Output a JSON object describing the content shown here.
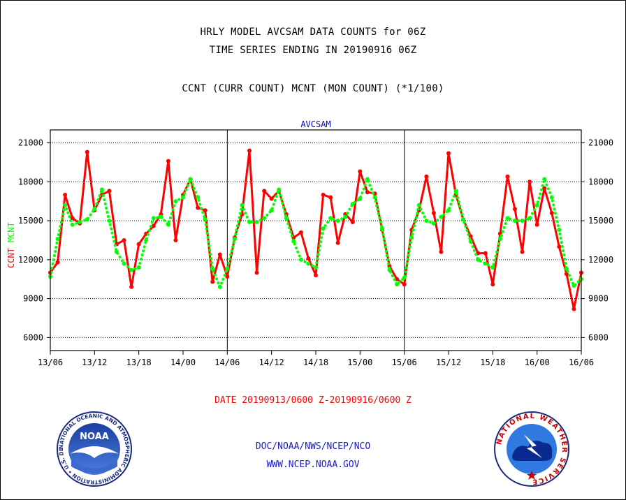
{
  "header": {
    "title_line1": "HRLY MODEL AVCSAM DATA COUNTS for 06Z",
    "title_line2": "TIME SERIES ENDING IN 20190916 06Z",
    "title_line3": "CCNT (CURR COUNT) MCNT (MON COUNT) (*1/100)"
  },
  "chart_data": {
    "type": "line",
    "title": "AVCSAM",
    "ylabel_ccnt": "CCNT",
    "ylabel_mcnt": "MCNT",
    "xlabel": "DATE 20190913/0600 Z-20190916/0600 Z",
    "ylim": [
      5000,
      22000
    ],
    "y_ticks": [
      6000,
      9000,
      12000,
      15000,
      18000,
      21000
    ],
    "y_tick_labels": [
      "6000",
      "9000",
      "12000",
      "15000",
      "18000",
      "21000"
    ],
    "x_tick_labels": [
      "13/06",
      "13/12",
      "13/18",
      "14/00",
      "14/06",
      "14/12",
      "14/18",
      "15/00",
      "15/06",
      "15/12",
      "15/18",
      "16/00",
      "16/06"
    ],
    "x_hours": [
      0,
      6,
      12,
      18,
      24,
      30,
      36,
      42,
      48,
      54,
      60,
      66,
      72
    ],
    "grid": true,
    "series": [
      {
        "name": "CCNT",
        "color": "#ff0000",
        "x": [
          0,
          1,
          2,
          3,
          4,
          5,
          6,
          7,
          8,
          9,
          10,
          11,
          12,
          13,
          14,
          15,
          16,
          17,
          18,
          19,
          20,
          21,
          22,
          23,
          24,
          25,
          26,
          27,
          28,
          29,
          30,
          31,
          32,
          33,
          34,
          35,
          36,
          37,
          38,
          39,
          40,
          41,
          42,
          43,
          44,
          45,
          46,
          47,
          48,
          49,
          50,
          51,
          52,
          53,
          54,
          55,
          56,
          57,
          58,
          59,
          60,
          61,
          62,
          63,
          64,
          65,
          66,
          67,
          68,
          69,
          70,
          71,
          72
        ],
        "values": [
          11000,
          11800,
          17000,
          15200,
          14800,
          20300,
          15800,
          17000,
          17300,
          13200,
          13500,
          9900,
          13200,
          14000,
          14600,
          15500,
          19600,
          13500,
          17000,
          18200,
          16000,
          15800,
          10300,
          12400,
          10700,
          13700,
          15500,
          20400,
          11000,
          17300,
          16700,
          17300,
          15500,
          13700,
          14100,
          12100,
          10800,
          17000,
          16800,
          13300,
          15500,
          14900,
          18800,
          17200,
          17100,
          14300,
          11500,
          10500,
          10100,
          14300,
          15800,
          18400,
          15600,
          12600,
          20200,
          17000,
          15100,
          13800,
          12500,
          12500,
          10100,
          14000,
          18400,
          15900,
          12600,
          18000,
          14700,
          17500,
          15600,
          13000,
          10900,
          8200,
          11000
        ]
      },
      {
        "name": "MCNT",
        "color": "#00ff00",
        "x": [
          0,
          1,
          2,
          3,
          4,
          5,
          6,
          7,
          8,
          9,
          10,
          11,
          12,
          13,
          14,
          15,
          16,
          17,
          18,
          19,
          20,
          21,
          22,
          23,
          24,
          25,
          26,
          27,
          28,
          29,
          30,
          31,
          32,
          33,
          34,
          35,
          36,
          37,
          38,
          39,
          40,
          41,
          42,
          43,
          44,
          45,
          46,
          47,
          48,
          49,
          50,
          51,
          52,
          53,
          54,
          55,
          56,
          57,
          58,
          59,
          60,
          61,
          62,
          63,
          64,
          65,
          66,
          67,
          68,
          69,
          70,
          71,
          72
        ],
        "values": [
          10700,
          13600,
          16200,
          14700,
          14900,
          15100,
          15900,
          17400,
          15000,
          12600,
          11700,
          11200,
          11400,
          13500,
          15200,
          15300,
          14700,
          16500,
          16800,
          18200,
          16800,
          15100,
          11300,
          9900,
          11300,
          13600,
          16200,
          14900,
          14900,
          15200,
          15800,
          17400,
          15200,
          13400,
          12000,
          11700,
          11400,
          14400,
          15200,
          15000,
          15300,
          16300,
          16700,
          18200,
          16800,
          14400,
          11200,
          10100,
          10600,
          13700,
          16200,
          15000,
          14800,
          15300,
          15800,
          17300,
          15100,
          13400,
          12000,
          11700,
          11400,
          13600,
          15200,
          15000,
          15000,
          15200,
          16200,
          18200,
          16800,
          14300,
          11300,
          10000,
          10500
        ]
      }
    ]
  },
  "footer": {
    "org_line1": "DOC/NOAA/NWS/NCEP/NCO",
    "org_line2": "WWW.NCEP.NOAA.GOV"
  },
  "logos": {
    "noaa_center_text": "NOAA",
    "noaa_ring_text": "NATIONAL OCEANIC AND ATMOSPHERIC ADMINISTRATION • U.S. DEPARTMENT OF COMMERCE •",
    "nws_ring_text": "NATIONAL WEATHER SERVICE"
  },
  "colors": {
    "ccnt": "#ff0000",
    "mcnt": "#00ff00",
    "footer_blue": "#1a1acc",
    "date_red": "#ff0000",
    "chart_title_blue": "#0000cc"
  }
}
